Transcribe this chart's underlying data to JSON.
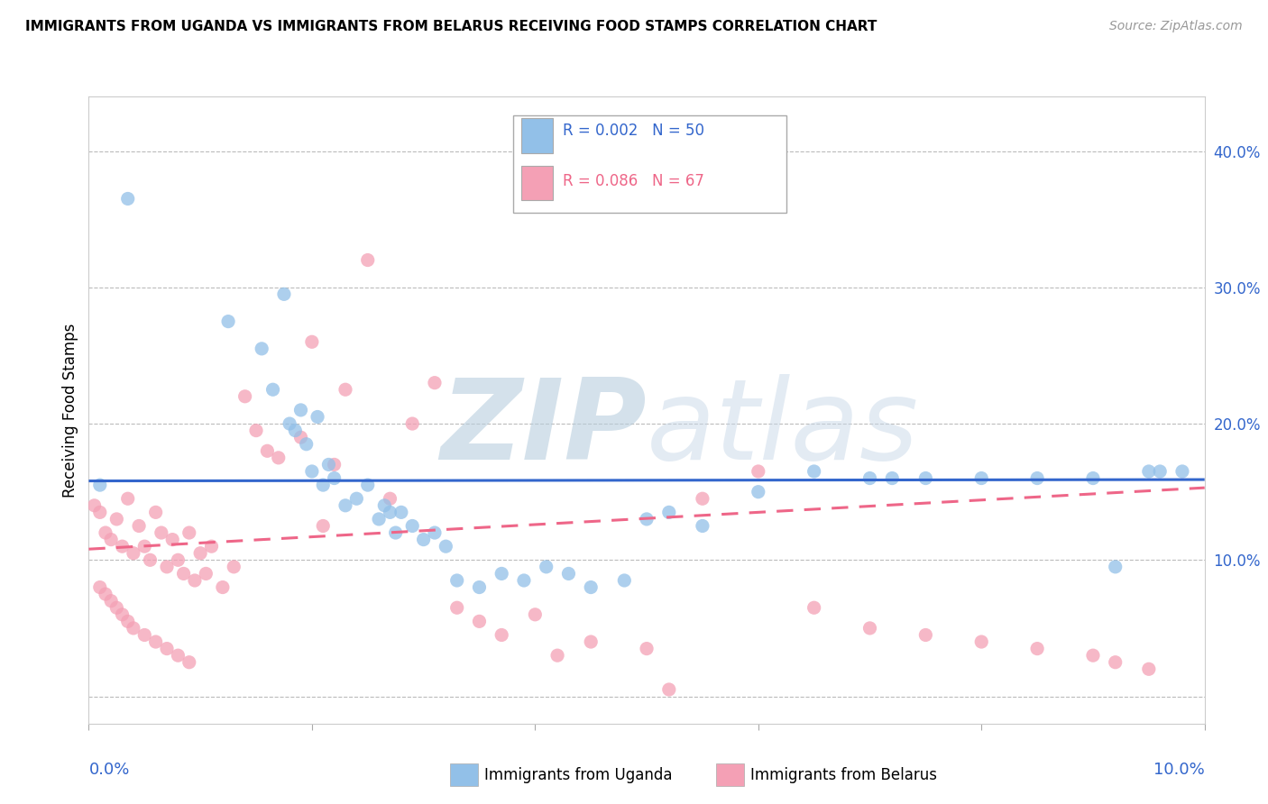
{
  "title": "IMMIGRANTS FROM UGANDA VS IMMIGRANTS FROM BELARUS RECEIVING FOOD STAMPS CORRELATION CHART",
  "source": "Source: ZipAtlas.com",
  "ylabel": "Receiving Food Stamps",
  "xlim": [
    0.0,
    10.0
  ],
  "ylim": [
    -2.0,
    44.0
  ],
  "color_uganda": "#92C0E8",
  "color_belarus": "#F4A0B5",
  "trendline_uganda_color": "#3366CC",
  "trendline_belarus_color": "#EE6688",
  "watermark_color": "#D0DCE8",
  "uganda_x": [
    0.35,
    1.25,
    1.55,
    1.65,
    1.75,
    1.8,
    1.85,
    1.9,
    1.95,
    2.0,
    2.05,
    2.1,
    2.15,
    2.2,
    2.3,
    2.4,
    2.5,
    2.6,
    2.65,
    2.7,
    2.75,
    2.8,
    2.9,
    3.0,
    3.1,
    3.2,
    3.3,
    3.5,
    3.7,
    3.9,
    4.1,
    4.3,
    4.5,
    4.8,
    5.0,
    5.2,
    5.5,
    6.0,
    6.5,
    7.0,
    7.2,
    7.5,
    8.0,
    8.5,
    9.0,
    9.2,
    9.5,
    9.6,
    9.8,
    0.1
  ],
  "uganda_y": [
    36.5,
    27.5,
    25.5,
    22.5,
    29.5,
    20.0,
    19.5,
    21.0,
    18.5,
    16.5,
    20.5,
    15.5,
    17.0,
    16.0,
    14.0,
    14.5,
    15.5,
    13.0,
    14.0,
    13.5,
    12.0,
    13.5,
    12.5,
    11.5,
    12.0,
    11.0,
    8.5,
    8.0,
    9.0,
    8.5,
    9.5,
    9.0,
    8.0,
    8.5,
    13.0,
    13.5,
    12.5,
    15.0,
    16.5,
    16.0,
    16.0,
    16.0,
    16.0,
    16.0,
    16.0,
    9.5,
    16.5,
    16.5,
    16.5,
    15.5
  ],
  "belarus_x": [
    0.05,
    0.1,
    0.15,
    0.2,
    0.25,
    0.3,
    0.35,
    0.4,
    0.45,
    0.5,
    0.55,
    0.6,
    0.65,
    0.7,
    0.75,
    0.8,
    0.85,
    0.9,
    0.95,
    1.0,
    1.05,
    1.1,
    1.2,
    1.3,
    1.4,
    1.5,
    1.6,
    1.7,
    1.9,
    2.0,
    2.1,
    2.2,
    2.3,
    2.5,
    2.7,
    2.9,
    3.1,
    3.3,
    3.5,
    3.7,
    4.0,
    4.2,
    4.5,
    5.0,
    5.2,
    5.5,
    6.0,
    6.5,
    7.0,
    7.5,
    8.0,
    8.5,
    9.0,
    9.2,
    9.5,
    0.1,
    0.15,
    0.2,
    0.25,
    0.3,
    0.35,
    0.4,
    0.5,
    0.6,
    0.7,
    0.8,
    0.9
  ],
  "belarus_y": [
    14.0,
    13.5,
    12.0,
    11.5,
    13.0,
    11.0,
    14.5,
    10.5,
    12.5,
    11.0,
    10.0,
    13.5,
    12.0,
    9.5,
    11.5,
    10.0,
    9.0,
    12.0,
    8.5,
    10.5,
    9.0,
    11.0,
    8.0,
    9.5,
    22.0,
    19.5,
    18.0,
    17.5,
    19.0,
    26.0,
    12.5,
    17.0,
    22.5,
    32.0,
    14.5,
    20.0,
    23.0,
    6.5,
    5.5,
    4.5,
    6.0,
    3.0,
    4.0,
    3.5,
    0.5,
    14.5,
    16.5,
    6.5,
    5.0,
    4.5,
    4.0,
    3.5,
    3.0,
    2.5,
    2.0,
    8.0,
    7.5,
    7.0,
    6.5,
    6.0,
    5.5,
    5.0,
    4.5,
    4.0,
    3.5,
    3.0,
    2.5
  ]
}
